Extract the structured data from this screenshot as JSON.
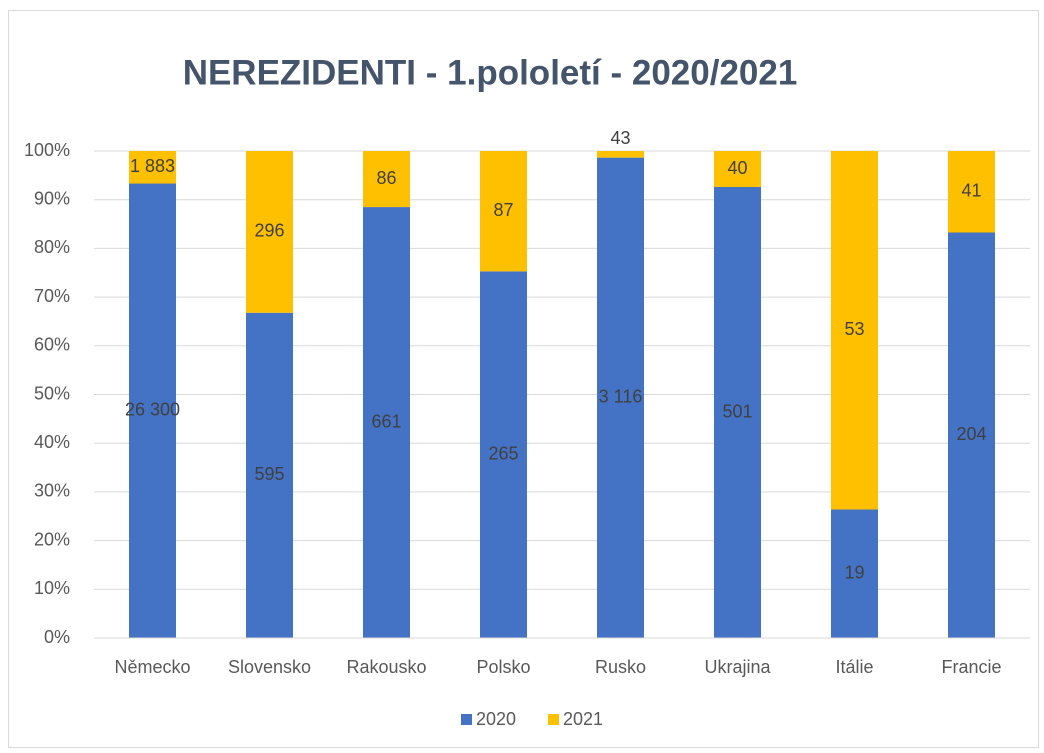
{
  "chart_data": {
    "type": "bar",
    "stack": "percent",
    "title": "NEREZIDENTI - 1.pololetí - 2020/2021",
    "categories": [
      "Německo",
      "Slovensko",
      "Rakousko",
      "Polsko",
      "Rusko",
      "Ukrajina",
      "Itálie",
      "Francie"
    ],
    "series": [
      {
        "name": "2020",
        "color": "#4472c4",
        "values": [
          26300,
          595,
          661,
          265,
          3116,
          501,
          19,
          204
        ],
        "value_labels": [
          "26 300",
          "595",
          "661",
          "265",
          "3 116",
          "501",
          "19",
          "204"
        ]
      },
      {
        "name": "2021",
        "color": "#ffc000",
        "values": [
          1883,
          296,
          86,
          87,
          43,
          40,
          53,
          41
        ],
        "value_labels": [
          "1 883",
          "296",
          "86",
          "87",
          "43",
          "40",
          "53",
          "41"
        ]
      }
    ],
    "ylim": [
      0,
      100
    ],
    "yticks": [
      {
        "value": 0,
        "label": "0%"
      },
      {
        "value": 10,
        "label": "10%"
      },
      {
        "value": 20,
        "label": "20%"
      },
      {
        "value": 30,
        "label": "30%"
      },
      {
        "value": 40,
        "label": "40%"
      },
      {
        "value": 50,
        "label": "50%"
      },
      {
        "value": 60,
        "label": "60%"
      },
      {
        "value": 70,
        "label": "70%"
      },
      {
        "value": 80,
        "label": "80%"
      },
      {
        "value": 90,
        "label": "90%"
      },
      {
        "value": 100,
        "label": "100%"
      }
    ],
    "grid": true,
    "legend": "bottom"
  }
}
